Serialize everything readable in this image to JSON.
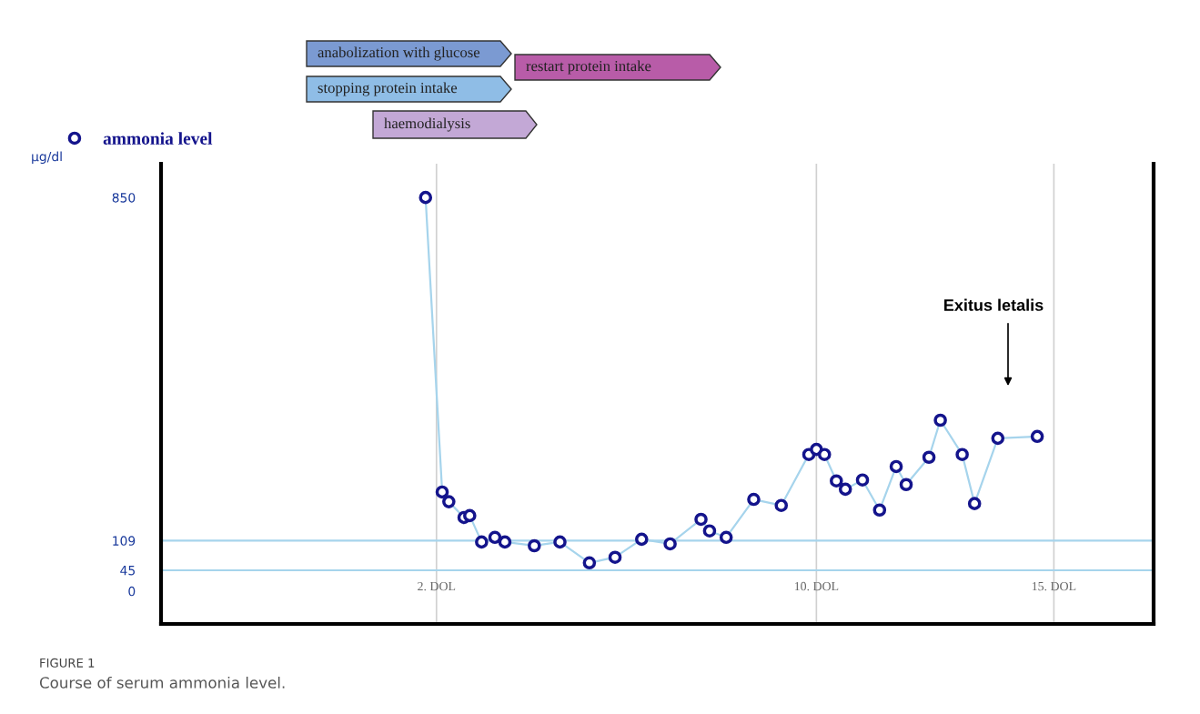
{
  "chart_data": {
    "type": "line",
    "ylabel": "µg/dl",
    "x": [
      1.77,
      2.12,
      2.26,
      2.58,
      2.7,
      2.95,
      3.23,
      3.44,
      4.06,
      4.6,
      5.22,
      5.76,
      6.32,
      6.92,
      7.57,
      7.75,
      8.1,
      8.68,
      9.26,
      9.84,
      10.0,
      10.17,
      10.42,
      10.61,
      10.97,
      11.33,
      11.68,
      11.89,
      12.37,
      12.61,
      13.07,
      13.33,
      13.82,
      14.65
    ],
    "series": [
      {
        "name": "ammonia level",
        "color": "#a6d4ec",
        "values": [
          850,
          214,
          193,
          159,
          163,
          106,
          116,
          106,
          98,
          106,
          61,
          73,
          112,
          102,
          155,
          130,
          116,
          198,
          185,
          295,
          306,
          295,
          238,
          220,
          240,
          175,
          269,
          230,
          289,
          369,
          295,
          189,
          330,
          334
        ]
      }
    ],
    "xlim": [
      -3.8,
      17.1
    ],
    "ylim": [
      -71,
      923
    ],
    "xticks": [
      {
        "value": 2,
        "label": "2. DOL"
      },
      {
        "value": 10,
        "label": "10. DOL"
      },
      {
        "value": 15,
        "label": "15. DOL"
      }
    ],
    "yticks": [
      0,
      45,
      109,
      850
    ],
    "ref_lines": [
      {
        "axis": "y",
        "value": 109,
        "color": "#a6d4ec"
      },
      {
        "axis": "y",
        "value": 45,
        "color": "#a6d4ec"
      }
    ],
    "grid": "x",
    "legend": "top left",
    "marker": "circle",
    "line_style": "solid",
    "annotations": [
      "anabolization with glucose",
      "restart protein intake",
      "stopping protein intake",
      "haemodialysis",
      "FIGURE 1",
      "Course of serum ammonia level.",
      "Exitus letalis"
    ]
  }
}
